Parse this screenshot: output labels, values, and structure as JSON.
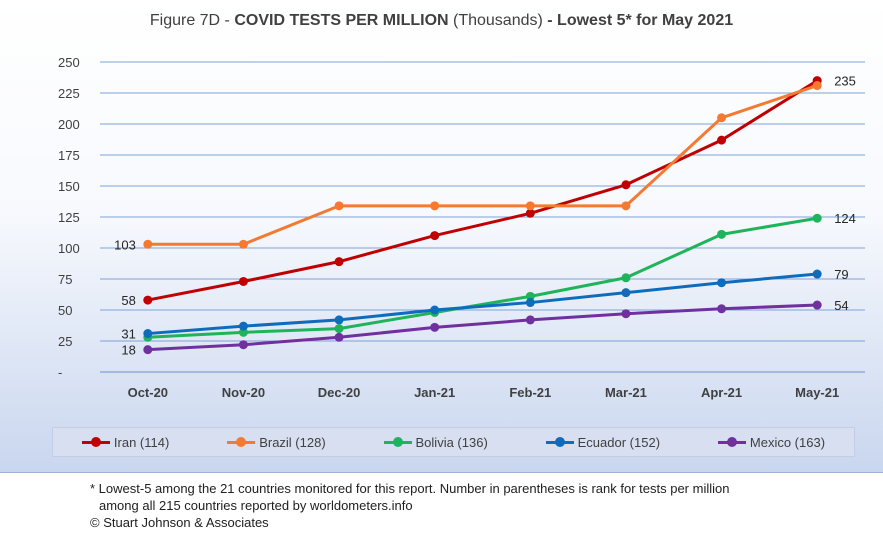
{
  "title": {
    "prefix": "Figure 7D - ",
    "bold1": "COVID TESTS PER MILLION",
    "middle": " (Thousands)",
    "bold2": " - Lowest 5* for May 2021"
  },
  "chart_data": {
    "type": "line",
    "categories": [
      "Oct-20",
      "Nov-20",
      "Dec-20",
      "Jan-21",
      "Feb-21",
      "Mar-21",
      "Apr-21",
      "May-21"
    ],
    "ylim": [
      0,
      250
    ],
    "yticks": [
      {
        "value": 0,
        "label": "-"
      },
      {
        "value": 25,
        "label": "25"
      },
      {
        "value": 50,
        "label": "50"
      },
      {
        "value": 75,
        "label": "75"
      },
      {
        "value": 100,
        "label": "100"
      },
      {
        "value": 125,
        "label": "125"
      },
      {
        "value": 150,
        "label": "150"
      },
      {
        "value": 175,
        "label": "175"
      },
      {
        "value": 200,
        "label": "200"
      },
      {
        "value": 225,
        "label": "225"
      },
      {
        "value": 250,
        "label": "250"
      }
    ],
    "grid": true,
    "legend_position": "bottom",
    "series": [
      {
        "name": "Iran (114)",
        "color": "#c00000",
        "values": [
          58,
          73,
          89,
          110,
          128,
          151,
          187,
          235
        ],
        "labels": [
          {
            "index": 0,
            "text": "58",
            "side": "left"
          },
          {
            "index": 7,
            "text": "235",
            "side": "right"
          }
        ]
      },
      {
        "name": "Brazil (128)",
        "color": "#f47a31",
        "values": [
          103,
          103,
          134,
          134,
          134,
          134,
          205,
          231
        ],
        "labels": [
          {
            "index": 0,
            "text": "103",
            "side": "left"
          }
        ]
      },
      {
        "name": "Bolivia (136)",
        "color": "#1fb45a",
        "values": [
          28,
          32,
          35,
          48,
          61,
          76,
          111,
          124
        ],
        "labels": [
          {
            "index": 7,
            "text": "124",
            "side": "right"
          }
        ]
      },
      {
        "name": "Ecuador (152)",
        "color": "#0f6cbd",
        "values": [
          31,
          37,
          42,
          50,
          56,
          64,
          72,
          79
        ],
        "labels": [
          {
            "index": 0,
            "text": "31",
            "side": "left"
          },
          {
            "index": 7,
            "text": "79",
            "side": "right"
          }
        ]
      },
      {
        "name": "Mexico (163)",
        "color": "#7030a0",
        "values": [
          18,
          22,
          28,
          36,
          42,
          47,
          51,
          54
        ],
        "labels": [
          {
            "index": 0,
            "text": "18",
            "side": "left"
          },
          {
            "index": 7,
            "text": "54",
            "side": "right"
          }
        ]
      }
    ]
  },
  "footnote": {
    "line1": "* Lowest-5 among the 21 countries monitored for this report. Number in parentheses is rank for tests per million",
    "line2": "among all 215 countries reported by worldometers.info",
    "line3": "© Stuart Johnson & Associates"
  }
}
